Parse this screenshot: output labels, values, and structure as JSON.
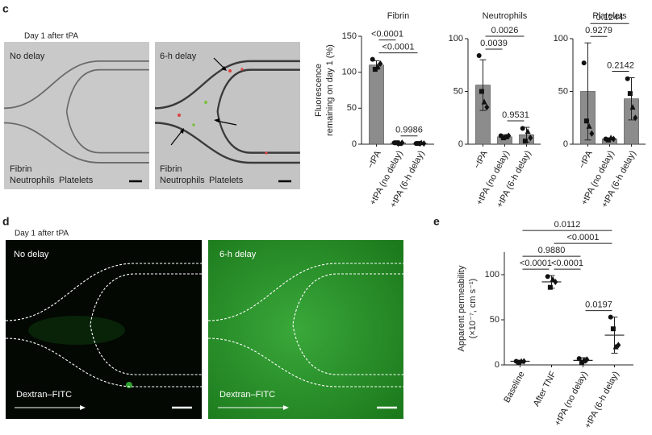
{
  "panels": [
    {
      "label": "c",
      "caption": "Day 1 after tPA",
      "images": [
        {
          "title": "No delay",
          "legend": [
            {
              "text": "Fibrin",
              "color": "#3c3cb0"
            },
            {
              "text": "Neutrophils",
              "color": "#e03030"
            },
            {
              "text": "Platelets",
              "color": "#2a9a2a"
            }
          ]
        },
        {
          "title": "6-h delay",
          "legend": [
            {
              "text": "Fibrin",
              "color": "#3c3cb0"
            },
            {
              "text": "Neutrophils",
              "color": "#e03030"
            },
            {
              "text": "Platelets",
              "color": "#2a9a2a"
            }
          ]
        }
      ]
    },
    {
      "label": "d",
      "caption": "Day 1 after tPA",
      "images": [
        {
          "title": "No delay",
          "annotation": "Dextran–FITC"
        },
        {
          "title": "6-h delay",
          "annotation": "Dextran–FITC"
        }
      ]
    },
    {
      "label": "e"
    }
  ],
  "chart_data": [
    {
      "type": "bar",
      "title": "Fibrin",
      "ylabel": [
        "Fluorescence",
        "remaining on day 1 (%)"
      ],
      "categories": [
        "−tPA",
        "+tPA (no delay)",
        "+tPA (6-h delay)"
      ],
      "values": [
        110,
        2,
        1
      ],
      "errors": [
        6,
        0.5,
        0.5
      ],
      "points": [
        [
          118,
          104,
          108,
          112
        ],
        [
          2,
          2,
          1,
          2
        ],
        [
          1,
          1,
          2,
          1
        ]
      ],
      "markers": [
        "circle",
        "square",
        "triangle",
        "diamond"
      ],
      "color": "#8c8c8c",
      "ylim": [
        0,
        150
      ],
      "yticks": [
        0,
        50,
        100,
        150
      ],
      "comparisons": [
        {
          "pair": [
            "−tPA",
            "+tPA (no delay)"
          ],
          "label": "<0.0001"
        },
        {
          "pair": [
            "−tPA",
            "+tPA (6-h delay)"
          ],
          "label": "<0.0001"
        },
        {
          "pair": [
            "+tPA (no delay)",
            "+tPA (6-h delay)"
          ],
          "label": "0.9986"
        }
      ]
    },
    {
      "type": "bar",
      "title": "Neutrophils",
      "categories": [
        "−tPA",
        "+tPA (no delay)",
        "+tPA (6-h delay)"
      ],
      "values": [
        56,
        7,
        9
      ],
      "errors": [
        24,
        2,
        7
      ],
      "points": [
        [
          84,
          50,
          40,
          35
        ],
        [
          8,
          6,
          7,
          8
        ],
        [
          15,
          3,
          12,
          6
        ]
      ],
      "markers": [
        "circle",
        "square",
        "triangle",
        "diamond"
      ],
      "color": "#8c8c8c",
      "ylim": [
        0,
        100
      ],
      "yticks": [
        0,
        50,
        100
      ],
      "comparisons": [
        {
          "pair": [
            "−tPA",
            "+tPA (6-h delay)"
          ],
          "label": "0.0026"
        },
        {
          "pair": [
            "−tPA",
            "+tPA (no delay)"
          ],
          "label": "0.0039"
        },
        {
          "pair": [
            "+tPA (no delay)",
            "+tPA (6-h delay)"
          ],
          "label": "0.9531"
        }
      ]
    },
    {
      "type": "bar",
      "title": "Platelets",
      "categories": [
        "−tPA",
        "+tPA (no delay)",
        "+tPA (6-h delay)"
      ],
      "values": [
        50,
        5,
        43
      ],
      "errors": [
        46,
        1,
        20
      ],
      "points": [
        [
          77,
          22,
          17,
          10
        ],
        [
          5,
          4,
          6,
          5
        ],
        [
          62,
          48,
          35,
          25
        ]
      ],
      "markers": [
        "circle",
        "square",
        "triangle",
        "diamond"
      ],
      "color": "#8c8c8c",
      "ylim": [
        0,
        100
      ],
      "yticks": [
        0,
        50,
        100
      ],
      "comparisons": [
        {
          "pair": [
            "−tPA",
            "+tPA (6-h delay)"
          ],
          "label": "0.1244"
        },
        {
          "pair": [
            "−tPA",
            "+tPA (no delay)"
          ],
          "label": "0.9279"
        },
        {
          "pair": [
            "+tPA (no delay)",
            "+tPA (6-h delay)"
          ],
          "label": "0.2142"
        }
      ]
    },
    {
      "type": "dot",
      "ylabel": [
        "Apparent permeability",
        "(×10⁻⁷, cm s⁻¹)"
      ],
      "categories": [
        "Baseline",
        "After TNF",
        "+tPA (no delay)",
        "+tPA (6-h delay)"
      ],
      "values": [
        4,
        92,
        5,
        33
      ],
      "errors": [
        1,
        7,
        3,
        20
      ],
      "points": [
        [
          4,
          3,
          4,
          4
        ],
        [
          98,
          86,
          95,
          92
        ],
        [
          7,
          3,
          5,
          6
        ],
        [
          53,
          40,
          20,
          22
        ]
      ],
      "markers": [
        "circle",
        "square",
        "triangle",
        "diamond"
      ],
      "color": "#222222",
      "ylim": [
        0,
        125
      ],
      "yticks": [
        0,
        50,
        100
      ],
      "comparisons": [
        {
          "pair": [
            "Baseline",
            "+tPA (6-h delay)"
          ],
          "label": "0.0112"
        },
        {
          "pair": [
            "After TNF",
            "+tPA (6-h delay)"
          ],
          "label": "<0.0001"
        },
        {
          "pair": [
            "Baseline",
            "+tPA (no delay)"
          ],
          "label": "0.9880"
        },
        {
          "pair": [
            "Baseline",
            "After TNF"
          ],
          "label": "<0.0001"
        },
        {
          "pair": [
            "After TNF",
            "+tPA (no delay)"
          ],
          "label": "<0.0001"
        },
        {
          "pair": [
            "+tPA (no delay)",
            "+tPA (6-h delay)"
          ],
          "label": "0.0197"
        }
      ]
    }
  ]
}
